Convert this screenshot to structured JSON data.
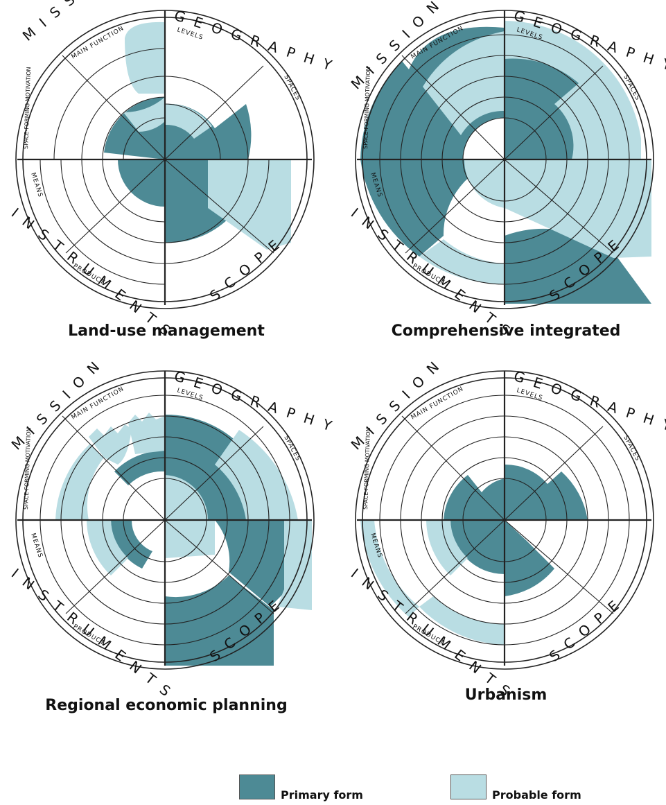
{
  "colors": {
    "primary": "#4d8a95",
    "probable": "#b9dde3"
  },
  "labels": {
    "mission": "MISSION",
    "main_function": "MAIN FUNCTION",
    "space_forming_motivation": "SPACE-FORMING MOTIVATION",
    "geography": "GEOGRAPHY",
    "levels": "LEVELS",
    "spaces": "SPACES",
    "instruments": "INSTRUMENTS",
    "means": "MEANS",
    "product": "PRODUCT",
    "scope": "SCOPE"
  },
  "panels": [
    {
      "title": "Land-use management"
    },
    {
      "title": "Comprehensive integrated"
    },
    {
      "title": "Regional economic planning"
    },
    {
      "title": "Urbanism"
    }
  ],
  "legend": {
    "primary_label": "Primary form",
    "probable_label": "Probable form"
  }
}
